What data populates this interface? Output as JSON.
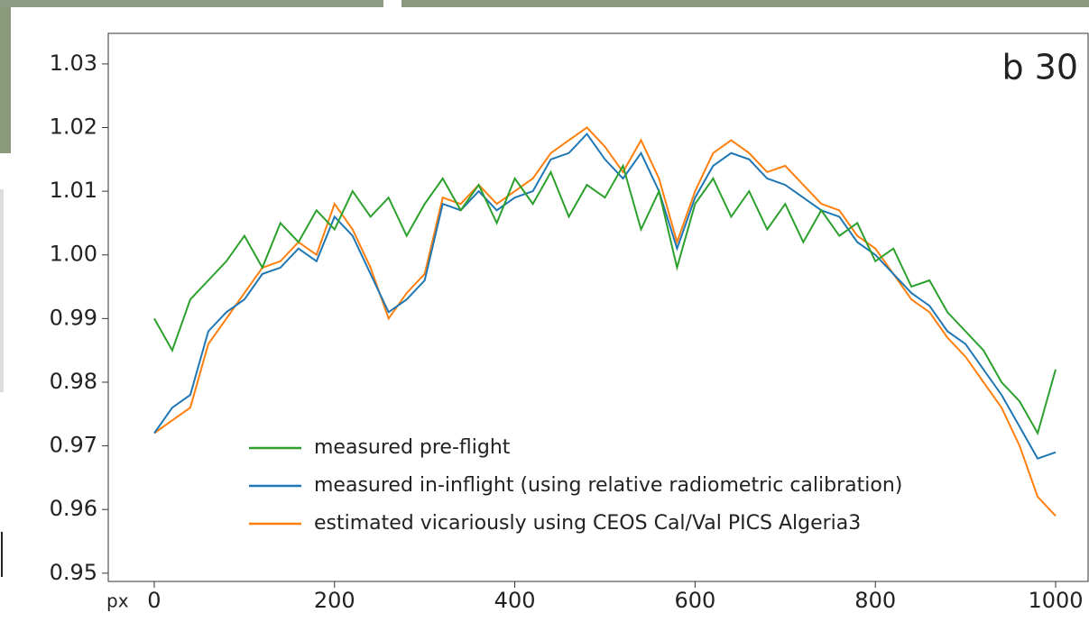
{
  "chart_data": {
    "type": "line",
    "annotation": "b 30",
    "x_unit_label": "px",
    "x": [
      0,
      20,
      40,
      60,
      80,
      100,
      120,
      140,
      160,
      180,
      200,
      220,
      240,
      260,
      280,
      300,
      320,
      340,
      360,
      380,
      400,
      420,
      440,
      460,
      480,
      500,
      520,
      540,
      560,
      580,
      600,
      620,
      640,
      660,
      680,
      700,
      720,
      740,
      760,
      780,
      800,
      820,
      840,
      860,
      880,
      900,
      920,
      940,
      960,
      980,
      1000
    ],
    "series": [
      {
        "name": "measured pre-flight",
        "color": "#2ca02c",
        "values": [
          0.99,
          0.985,
          0.993,
          0.996,
          0.999,
          1.003,
          0.998,
          1.005,
          1.002,
          1.007,
          1.004,
          1.01,
          1.006,
          1.009,
          1.003,
          1.008,
          1.012,
          1.007,
          1.011,
          1.005,
          1.012,
          1.008,
          1.013,
          1.006,
          1.011,
          1.009,
          1.014,
          1.004,
          1.01,
          0.998,
          1.008,
          1.012,
          1.006,
          1.01,
          1.004,
          1.008,
          1.002,
          1.007,
          1.003,
          1.005,
          0.999,
          1.001,
          0.995,
          0.996,
          0.991,
          0.988,
          0.985,
          0.98,
          0.977,
          0.972,
          0.982
        ]
      },
      {
        "name": "measured in-inflight (using relative radiometric calibration)",
        "color": "#1f77b4",
        "values": [
          0.972,
          0.976,
          0.978,
          0.988,
          0.991,
          0.993,
          0.997,
          0.998,
          1.001,
          0.999,
          1.006,
          1.003,
          0.997,
          0.991,
          0.993,
          0.996,
          1.008,
          1.007,
          1.01,
          1.007,
          1.009,
          1.01,
          1.015,
          1.016,
          1.019,
          1.015,
          1.012,
          1.016,
          1.01,
          1.001,
          1.009,
          1.014,
          1.016,
          1.015,
          1.012,
          1.011,
          1.009,
          1.007,
          1.006,
          1.002,
          1.0,
          0.997,
          0.994,
          0.992,
          0.988,
          0.986,
          0.982,
          0.978,
          0.973,
          0.968,
          0.969
        ]
      },
      {
        "name": "estimated vicariously using CEOS Cal/Val PICS Algeria3",
        "color": "#ff7f0e",
        "values": [
          0.972,
          0.974,
          0.976,
          0.986,
          0.99,
          0.994,
          0.998,
          0.999,
          1.002,
          1.0,
          1.008,
          1.004,
          0.998,
          0.99,
          0.994,
          0.997,
          1.009,
          1.008,
          1.011,
          1.008,
          1.01,
          1.012,
          1.016,
          1.018,
          1.02,
          1.017,
          1.013,
          1.018,
          1.012,
          1.002,
          1.01,
          1.016,
          1.018,
          1.016,
          1.013,
          1.014,
          1.011,
          1.008,
          1.007,
          1.003,
          1.001,
          0.997,
          0.993,
          0.991,
          0.987,
          0.984,
          0.98,
          0.976,
          0.97,
          0.962,
          0.959
        ]
      }
    ],
    "xlim": [
      -51,
      1036
    ],
    "xticks": [
      0,
      200,
      400,
      600,
      800,
      1000
    ],
    "ylim": [
      0.9487,
      1.0348
    ],
    "yticks": [
      0.95,
      0.96,
      0.97,
      0.98,
      0.99,
      {
        "value": 1,
        "label": "1.00"
      },
      1.01,
      1.02,
      1.03
    ]
  }
}
